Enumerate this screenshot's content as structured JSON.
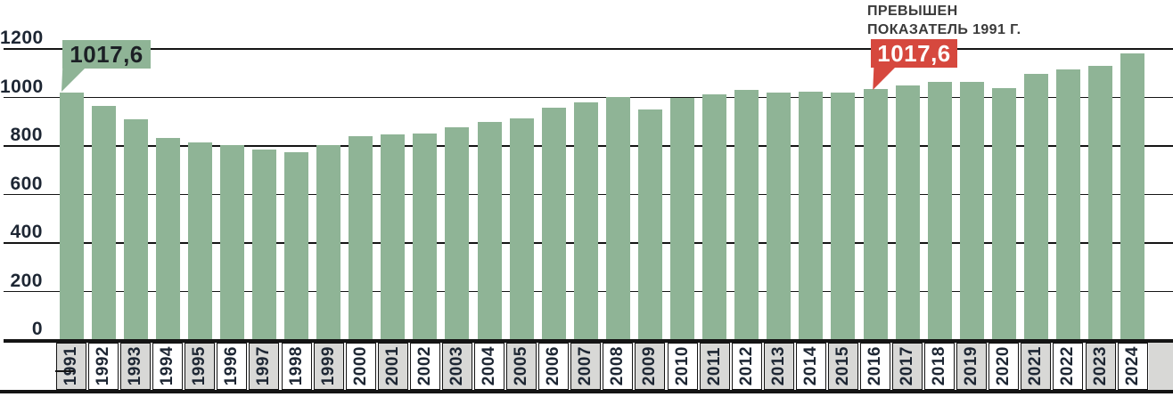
{
  "caption": {
    "line1": "ПРЕВЫШЕН",
    "line2": "ПОКАЗАТЕЛЬ 1991 Г."
  },
  "callout_1991": {
    "value": "1017,6"
  },
  "callout_2016": {
    "value": "1017,6"
  },
  "colors": {
    "bar_green": "#8fb496",
    "callout_green_bg": "#8fb496",
    "callout_green_text": "#1c2025",
    "callout_red_bg": "#d6483e",
    "callout_red_text": "#ffffff",
    "caption_text": "#3a3a3a",
    "axis_text": "#1d2633",
    "grid_line": "#141414",
    "cell_gray": "#d8d8d6",
    "cell_white": "#ffffff"
  },
  "chart_data": {
    "type": "bar",
    "title": "",
    "xlabel": "",
    "ylabel": "",
    "ylim": [
      0,
      1200
    ],
    "yticks": [
      0,
      200,
      400,
      600,
      800,
      1000,
      1200
    ],
    "grid": true,
    "categories": [
      1991,
      1992,
      1993,
      1994,
      1995,
      1996,
      1997,
      1998,
      1999,
      2000,
      2001,
      2002,
      2003,
      2004,
      2005,
      2006,
      2007,
      2008,
      2009,
      2010,
      2011,
      2012,
      2013,
      2014,
      2015,
      2016,
      2017,
      2018,
      2019,
      2020,
      2021,
      2022,
      2023,
      2024
    ],
    "values": [
      1017.6,
      960,
      905,
      830,
      810,
      800,
      782,
      772,
      799,
      836,
      843,
      848,
      874,
      894,
      909,
      953,
      975,
      997,
      947,
      996,
      1010,
      1029,
      1017,
      1019,
      1018,
      1032,
      1046,
      1061,
      1061,
      1036,
      1093,
      1113,
      1126,
      1179
    ],
    "annotations": [
      {
        "year": 1991,
        "label": "1017,6",
        "style": "green-callout"
      },
      {
        "year": 2016,
        "label": "1017,6",
        "style": "red-callout",
        "caption": "ПРЕВЫШЕН ПОКАЗАТЕЛЬ 1991 Г."
      }
    ],
    "x_label_stripe": {
      "odd_year_fill": "#d8d8d6",
      "even_year_fill": "#ffffff",
      "emphasized_year": 1991
    }
  }
}
